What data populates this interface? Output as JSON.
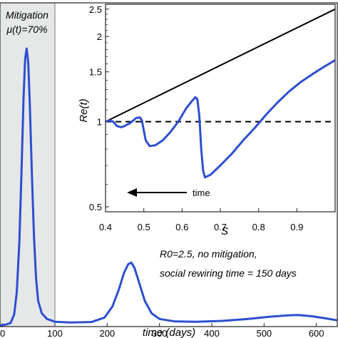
{
  "chart_data": [
    {
      "type": "line",
      "xlabel": "time (days)",
      "xlim": [
        -5,
        640
      ],
      "x_ticks": [
        "0",
        "100",
        "200",
        "300",
        "400",
        "500",
        "600"
      ],
      "x_tick_values": [
        0,
        100,
        200,
        300,
        400,
        500,
        600
      ],
      "shaded_region": {
        "x_start": -5,
        "x_end": 100,
        "color": "#e6e8e8"
      },
      "annotation_mitigation": [
        "Mitigation",
        "μ(t)=70%"
      ],
      "annotation_params": [
        "R0=2.5, no mitigation,",
        "social rewiring time = 150 days"
      ],
      "series": [
        {
          "color": "#2d4fcf",
          "points": [
            [
              -5,
              0.002
            ],
            [
              5,
              0.004
            ],
            [
              15,
              0.01
            ],
            [
              22,
              0.04
            ],
            [
              27,
              0.12
            ],
            [
              32,
              0.3
            ],
            [
              36,
              0.55
            ],
            [
              40,
              0.82
            ],
            [
              43,
              0.96
            ],
            [
              46,
              1.0
            ],
            [
              49,
              0.95
            ],
            [
              52,
              0.8
            ],
            [
              56,
              0.55
            ],
            [
              60,
              0.32
            ],
            [
              64,
              0.17
            ],
            [
              68,
              0.09
            ],
            [
              75,
              0.045
            ],
            [
              85,
              0.025
            ],
            [
              100,
              0.015
            ],
            [
              130,
              0.012
            ],
            [
              170,
              0.014
            ],
            [
              195,
              0.03
            ],
            [
              210,
              0.07
            ],
            [
              222,
              0.13
            ],
            [
              232,
              0.19
            ],
            [
              240,
              0.222
            ],
            [
              246,
              0.228
            ],
            [
              252,
              0.21
            ],
            [
              262,
              0.15
            ],
            [
              272,
              0.09
            ],
            [
              285,
              0.045
            ],
            [
              300,
              0.025
            ],
            [
              330,
              0.016
            ],
            [
              370,
              0.015
            ],
            [
              420,
              0.018
            ],
            [
              470,
              0.025
            ],
            [
              510,
              0.033
            ],
            [
              545,
              0.038
            ],
            [
              565,
              0.039
            ],
            [
              590,
              0.035
            ],
            [
              615,
              0.028
            ],
            [
              640,
              0.02
            ]
          ]
        }
      ]
    },
    {
      "type": "line",
      "xlabel": "S",
      "ylabel": "Re(t)",
      "xlim": [
        0.4,
        1.0
      ],
      "ylim": [
        0.48,
        2.6
      ],
      "yscale": "log",
      "x_ticks": [
        "0.4",
        "0.5",
        "0.6",
        "0.7",
        "0.8",
        "0.9"
      ],
      "x_tick_values": [
        0.4,
        0.5,
        0.6,
        0.7,
        0.8,
        0.9
      ],
      "y_ticks": [
        "0.5",
        "1",
        "1.5",
        "2",
        "2.5"
      ],
      "y_tick_values": [
        0.5,
        1,
        1.5,
        2,
        2.5
      ],
      "reference_line": {
        "y": 1,
        "style": "dashed"
      },
      "arrow_label": "time",
      "series": [
        {
          "color": "#000000",
          "points": [
            [
              0.4,
              1.0
            ],
            [
              1.0,
              2.5
            ]
          ]
        },
        {
          "color": "#2d4fcf",
          "points": [
            [
              0.4,
              1.0
            ],
            [
              0.41,
              1.01
            ],
            [
              0.42,
              1.0
            ],
            [
              0.43,
              0.965
            ],
            [
              0.44,
              0.955
            ],
            [
              0.45,
              0.965
            ],
            [
              0.465,
              0.99
            ],
            [
              0.48,
              1.03
            ],
            [
              0.49,
              1.035
            ],
            [
              0.495,
              1.01
            ],
            [
              0.5,
              0.93
            ],
            [
              0.505,
              0.86
            ],
            [
              0.515,
              0.82
            ],
            [
              0.53,
              0.825
            ],
            [
              0.55,
              0.86
            ],
            [
              0.57,
              0.92
            ],
            [
              0.59,
              1.0
            ],
            [
              0.61,
              1.11
            ],
            [
              0.625,
              1.18
            ],
            [
              0.635,
              1.22
            ],
            [
              0.64,
              1.2
            ],
            [
              0.645,
              1.05
            ],
            [
              0.65,
              0.8
            ],
            [
              0.655,
              0.67
            ],
            [
              0.66,
              0.635
            ],
            [
              0.675,
              0.65
            ],
            [
              0.7,
              0.7
            ],
            [
              0.73,
              0.77
            ],
            [
              0.76,
              0.86
            ],
            [
              0.79,
              0.95
            ],
            [
              0.82,
              1.06
            ],
            [
              0.85,
              1.17
            ],
            [
              0.88,
              1.28
            ],
            [
              0.91,
              1.38
            ],
            [
              0.94,
              1.47
            ],
            [
              0.97,
              1.56
            ],
            [
              1.0,
              1.65
            ]
          ]
        }
      ]
    }
  ]
}
